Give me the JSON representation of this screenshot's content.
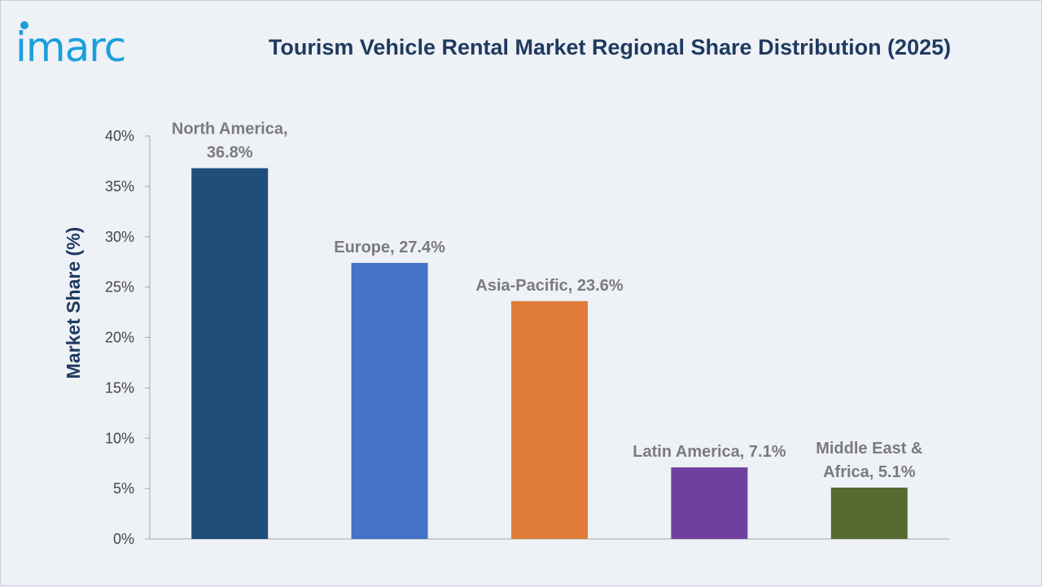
{
  "brand": {
    "logo_text": "imarc",
    "logo_color": "#1a9fdc"
  },
  "chart_data": {
    "type": "bar",
    "title": "Tourism Vehicle Rental Market Regional Share Distribution (2025)",
    "ylabel": "Market Share (%)",
    "xlabel": "",
    "ylim": [
      0,
      40
    ],
    "yticks": [
      "0%",
      "5%",
      "10%",
      "15%",
      "20%",
      "25%",
      "30%",
      "35%",
      "40%"
    ],
    "ytick_values": [
      0,
      5,
      10,
      15,
      20,
      25,
      30,
      35,
      40
    ],
    "categories": [
      "North America",
      "Europe",
      "Asia-Pacific",
      "Latin America",
      "Middle East & Africa"
    ],
    "values": [
      36.8,
      27.4,
      23.6,
      7.1,
      5.1
    ],
    "data_labels": [
      [
        "North America,",
        "36.8%"
      ],
      [
        "Europe, 27.4%"
      ],
      [
        "Asia-Pacific, 23.6%"
      ],
      [
        "Latin America, 7.1%"
      ],
      [
        "Middle East &",
        "Africa, 5.1%"
      ]
    ],
    "colors": [
      "#1f4e79",
      "#4472c4",
      "#e07b39",
      "#7040a0",
      "#556b2f"
    ],
    "grid": false,
    "legend": "none"
  }
}
